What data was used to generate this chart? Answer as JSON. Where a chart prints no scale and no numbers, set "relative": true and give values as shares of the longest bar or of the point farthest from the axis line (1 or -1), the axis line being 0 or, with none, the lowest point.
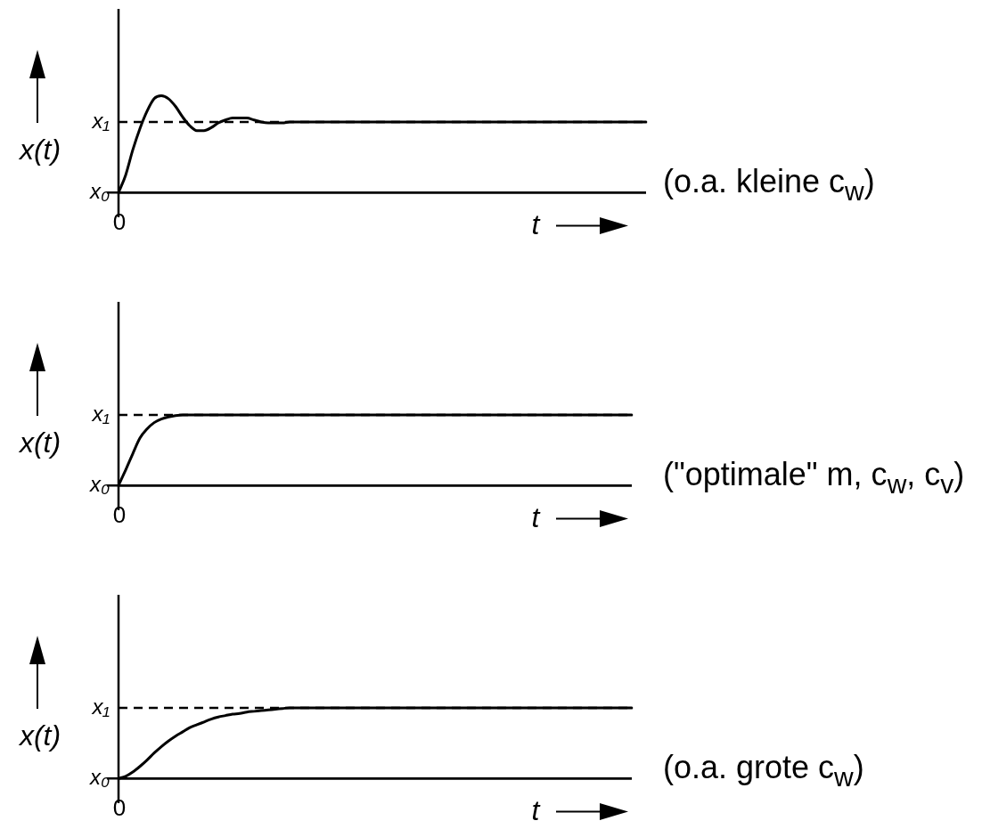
{
  "chart_data": [
    {
      "type": "line",
      "relative": true,
      "xlabel": "t",
      "ylabel": "x(t)",
      "categories": [
        null,
        null,
        null,
        null,
        null,
        null,
        null,
        null,
        null,
        null,
        null,
        null,
        null,
        null,
        null,
        null,
        null,
        null,
        null,
        null,
        null,
        null,
        null,
        null,
        null,
        null,
        null,
        null,
        null,
        null,
        null,
        null,
        null,
        null,
        null,
        null,
        null,
        null,
        null,
        null,
        null,
        null,
        null,
        null,
        null,
        null,
        null,
        null,
        null,
        null,
        null,
        null,
        null,
        null,
        null,
        null,
        null,
        null,
        null,
        null,
        null,
        null,
        null,
        null,
        null,
        null,
        null,
        null,
        null,
        null,
        null,
        null,
        null,
        null,
        null
      ],
      "values": [
        0,
        0.18,
        0.44,
        0.66,
        0.84,
        0.97,
        1,
        0.97,
        0.89,
        0.78,
        0.69,
        0.64,
        0.64,
        0.67,
        0.72,
        0.75,
        0.77,
        0.77,
        0.77,
        0.75,
        0.73,
        0.72,
        0.72,
        0.72,
        0.73,
        0.73,
        0.73,
        0.73,
        0.73,
        0.73,
        0.73,
        0.73,
        0.73,
        0.73,
        0.73,
        0.73,
        0.73,
        0.73,
        0.73,
        0.73,
        0.73,
        0.73,
        0.73,
        0.73,
        0.73,
        0.73,
        0.73,
        0.73,
        0.73,
        0.73,
        0.73,
        0.73,
        0.73,
        0.73,
        0.73,
        0.73,
        0.73,
        0.73,
        0.73,
        0.73,
        0.73,
        0.73,
        0.73,
        0.73,
        0.73,
        0.73,
        0.73,
        0.73,
        0.73,
        0.73,
        0.73,
        0.73,
        0.73,
        0.73,
        0.73
      ],
      "color": "#000000",
      "ref_lines": [
        {
          "axis": "y",
          "value": 0,
          "label": "x₀"
        },
        {
          "axis": "y",
          "value": 0.73,
          "label": "x₁",
          "line_style": "dashed",
          "color": "#000000"
        }
      ],
      "annotations": [
        {
          "text": "0",
          "y": 0
        },
        "(o.a. kleine c$_{w}$)"
      ]
    },
    {
      "type": "line",
      "relative": true,
      "xlabel": "t",
      "ylabel": "x(t)",
      "categories": [
        null,
        null,
        null,
        null,
        null,
        null,
        null,
        null,
        null,
        null,
        null,
        null,
        null,
        null,
        null,
        null,
        null,
        null,
        null,
        null,
        null,
        null,
        null,
        null,
        null,
        null,
        null,
        null,
        null,
        null,
        null,
        null,
        null,
        null,
        null,
        null,
        null,
        null,
        null,
        null,
        null,
        null,
        null,
        null,
        null,
        null,
        null,
        null,
        null,
        null,
        null,
        null,
        null,
        null,
        null,
        null,
        null,
        null,
        null,
        null,
        null,
        null,
        null,
        null,
        null,
        null,
        null,
        null,
        null,
        null,
        null,
        null,
        null
      ],
      "values": [
        0,
        0.22,
        0.45,
        0.67,
        0.8,
        0.89,
        0.94,
        0.97,
        0.99,
        1,
        1,
        1,
        1,
        1,
        1,
        1,
        1,
        1,
        1,
        1,
        1,
        1,
        1,
        1,
        1,
        1,
        1,
        1,
        1,
        1,
        1,
        1,
        1,
        1,
        1,
        1,
        1,
        1,
        1,
        1,
        1,
        1,
        1,
        1,
        1,
        1,
        1,
        1,
        1,
        1,
        1,
        1,
        1,
        1,
        1,
        1,
        1,
        1,
        1,
        1,
        1,
        1,
        1,
        1,
        1,
        1,
        1,
        1,
        1,
        1,
        1,
        1,
        1
      ],
      "color": "#000000",
      "ref_lines": [
        {
          "axis": "y",
          "value": 0,
          "label": "x₀"
        },
        {
          "axis": "y",
          "value": 1,
          "label": "x₁",
          "line_style": "dashed",
          "color": "#000000"
        }
      ],
      "annotations": [
        {
          "text": "0",
          "y": 0
        },
        "(\"optimale\" m, c$_{w}$, c$_{v}$)"
      ]
    },
    {
      "type": "line",
      "relative": true,
      "xlabel": "t",
      "ylabel": "x(t)",
      "categories": [
        null,
        null,
        null,
        null,
        null,
        null,
        null,
        null,
        null,
        null,
        null,
        null,
        null,
        null,
        null,
        null,
        null,
        null,
        null,
        null,
        null,
        null,
        null,
        null,
        null,
        null,
        null,
        null,
        null,
        null,
        null,
        null,
        null,
        null,
        null,
        null,
        null,
        null,
        null,
        null,
        null,
        null,
        null,
        null,
        null,
        null,
        null,
        null,
        null,
        null,
        null,
        null,
        null,
        null,
        null,
        null,
        null,
        null,
        null,
        null,
        null,
        null,
        null,
        null,
        null,
        null,
        null,
        null,
        null,
        null,
        null,
        null,
        null
      ],
      "values": [
        0,
        0.03,
        0.09,
        0.17,
        0.26,
        0.36,
        0.45,
        0.53,
        0.6,
        0.66,
        0.72,
        0.76,
        0.8,
        0.84,
        0.87,
        0.89,
        0.91,
        0.92,
        0.94,
        0.95,
        0.96,
        0.97,
        0.98,
        0.99,
        1,
        1,
        1,
        1,
        1,
        1,
        1,
        1,
        1,
        1,
        1,
        1,
        1,
        1,
        1,
        1,
        1,
        1,
        1,
        1,
        1,
        1,
        1,
        1,
        1,
        1,
        1,
        1,
        1,
        1,
        1,
        1,
        1,
        1,
        1,
        1,
        1,
        1,
        1,
        1,
        1,
        1,
        1,
        1,
        1,
        1,
        1,
        1,
        1
      ],
      "color": "#000000",
      "ref_lines": [
        {
          "axis": "y",
          "value": 0,
          "label": "x₀"
        },
        {
          "axis": "y",
          "value": 1,
          "label": "x₁",
          "line_style": "dashed",
          "color": "#000000"
        }
      ],
      "annotations": [
        {
          "text": "0",
          "y": 0
        },
        "(o.a. grote c$_{w}$)"
      ]
    }
  ]
}
